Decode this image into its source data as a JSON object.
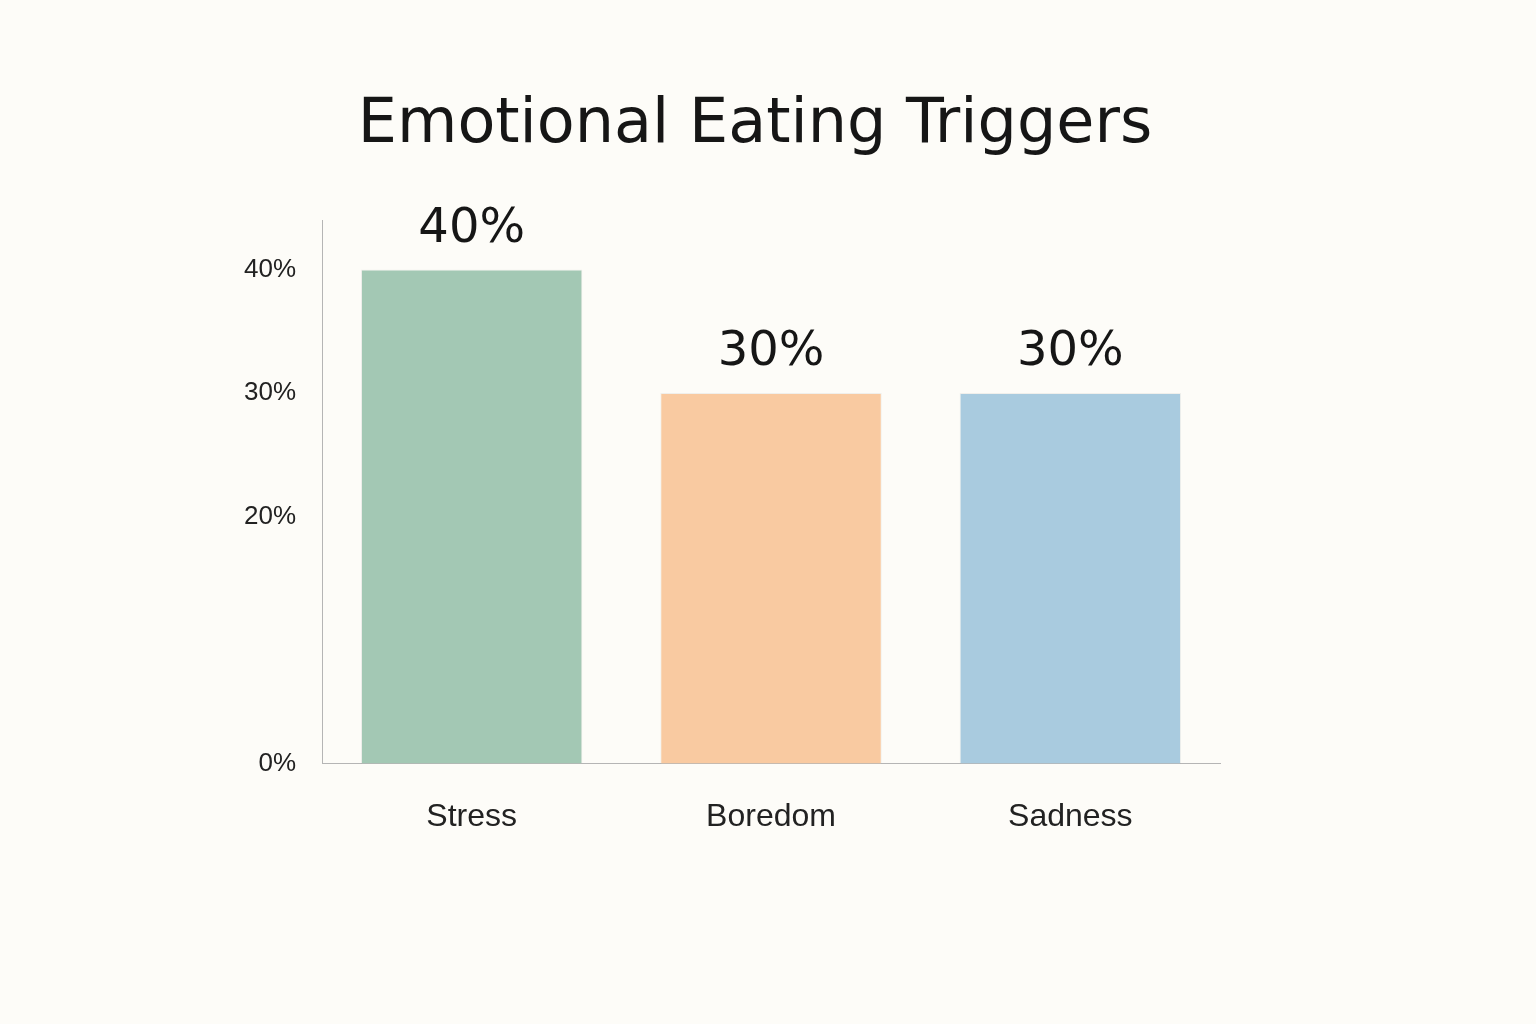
{
  "chart_data": {
    "type": "bar",
    "title": "Emotional Eating Triggers",
    "categories": [
      "Stress",
      "Boredom",
      "Sadness"
    ],
    "values": [
      40,
      30,
      30
    ],
    "colors": [
      "#a3c8b4",
      "#f9caa1",
      "#a9cbdf"
    ],
    "value_labels": [
      "40%",
      "30%",
      "30%"
    ],
    "ylim": [
      0,
      44
    ],
    "yticks": [
      {
        "value": 0,
        "label": "0%"
      },
      {
        "value": 20,
        "label": "20%"
      },
      {
        "value": 30,
        "label": "30%"
      },
      {
        "value": 40,
        "label": "40%"
      }
    ],
    "grid": false,
    "legend": false
  }
}
